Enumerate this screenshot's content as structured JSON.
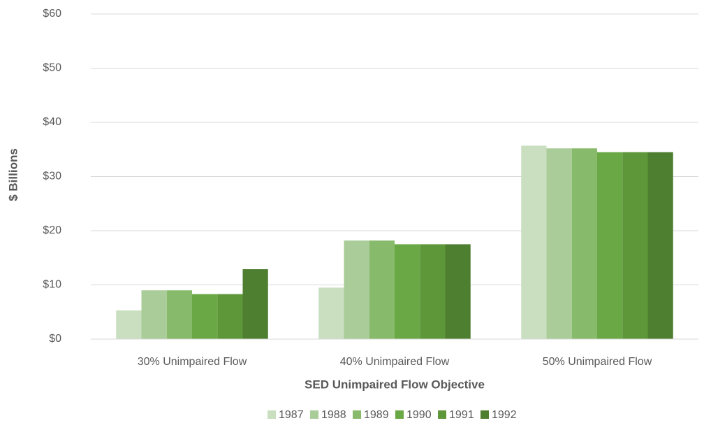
{
  "chart_data": {
    "type": "bar",
    "x_label": "SED Unimpaired Flow Objective",
    "y_label": "$ Billions",
    "categories": [
      "30% Unimpaired Flow",
      "40% Unimpaired Flow",
      "50% Unimpaired Flow"
    ],
    "series": [
      {
        "name": "1987",
        "color": "#c9dfc0",
        "values": [
          5.3,
          9.5,
          35.7
        ]
      },
      {
        "name": "1988",
        "color": "#a9cc98",
        "values": [
          9.0,
          18.2,
          35.2
        ]
      },
      {
        "name": "1989",
        "color": "#88ba6c",
        "values": [
          9.0,
          18.2,
          35.2
        ]
      },
      {
        "name": "1990",
        "color": "#6aa845",
        "values": [
          8.3,
          17.5,
          34.5
        ]
      },
      {
        "name": "1991",
        "color": "#5d973a",
        "values": [
          8.3,
          17.5,
          34.5
        ]
      },
      {
        "name": "1992",
        "color": "#4e7f30",
        "values": [
          12.9,
          17.5,
          34.5
        ]
      }
    ],
    "ylim": [
      0,
      60
    ],
    "yticks": [
      {
        "value": 0,
        "label": "$0"
      },
      {
        "value": 10,
        "label": "$10"
      },
      {
        "value": 20,
        "label": "$20"
      },
      {
        "value": 30,
        "label": "$30"
      },
      {
        "value": 40,
        "label": "$40"
      },
      {
        "value": 50,
        "label": "$50"
      },
      {
        "value": 60,
        "label": "$60"
      }
    ],
    "grid": true,
    "legend": "bottom"
  }
}
